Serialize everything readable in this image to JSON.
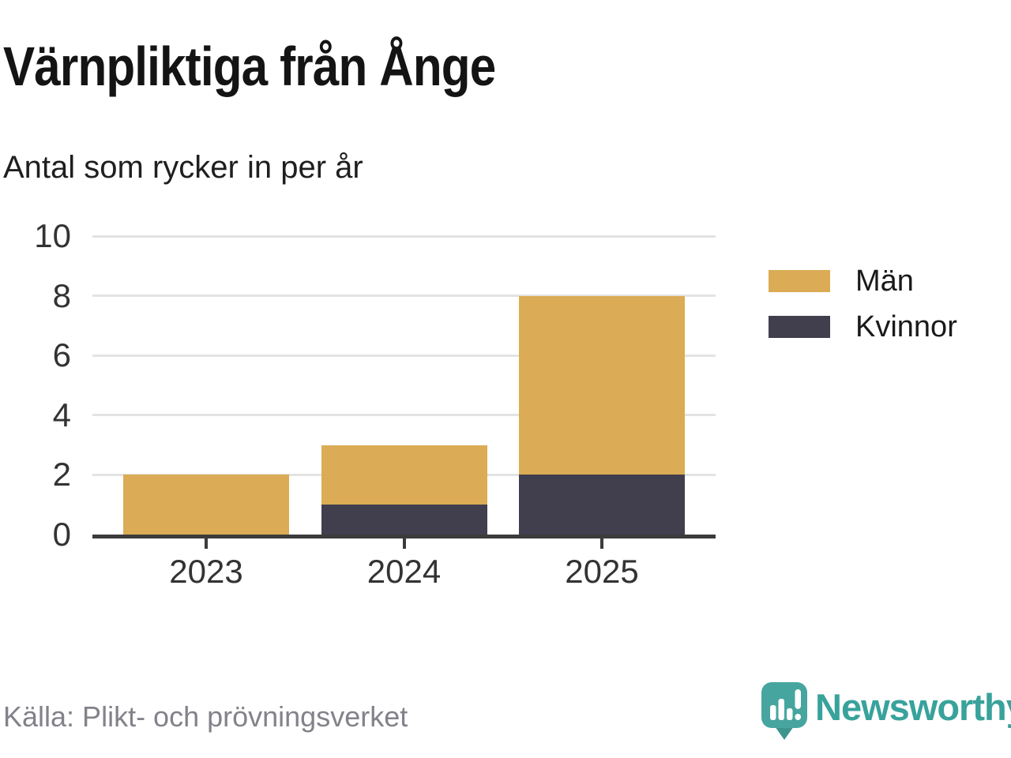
{
  "header": {
    "title": "Värnpliktiga från Ånge",
    "subtitle": "Antal som rycker in per år"
  },
  "chart_data": {
    "type": "bar",
    "stacked": true,
    "categories": [
      "2023",
      "2024",
      "2025"
    ],
    "series": [
      {
        "name": "Kvinnor",
        "color": "#413f4e",
        "values": [
          0,
          1,
          2
        ]
      },
      {
        "name": "Män",
        "color": "#dbac55",
        "values": [
          2,
          2,
          6
        ]
      }
    ],
    "totals": [
      2,
      3,
      8
    ],
    "title": "Värnpliktiga från Ånge",
    "subtitle": "Antal som rycker in per år",
    "xlabel": "",
    "ylabel": "",
    "ylim": [
      0,
      10
    ],
    "yticks": [
      0,
      2,
      4,
      6,
      8,
      10
    ],
    "grid": true,
    "legend_position": "right",
    "stack_order": "Kvinnor bottom, Män top"
  },
  "legend": {
    "items": [
      {
        "label": "Män",
        "color": "#dbac55"
      },
      {
        "label": "Kvinnor",
        "color": "#413f4e"
      }
    ]
  },
  "footer": {
    "source": "Källa: Plikt- och prövningsverket",
    "brand": "Newsworthy",
    "brand_color": "#38a29b",
    "logo_icon": "newsworthy-chart-bubble-icon"
  },
  "colors": {
    "men": "#dbac55",
    "women": "#413f4e",
    "axis": "#3b3b3b",
    "gridline": "#e3e3e3",
    "brand_teal": "#46a69f",
    "brand_tail_teal": "#3d948d"
  }
}
